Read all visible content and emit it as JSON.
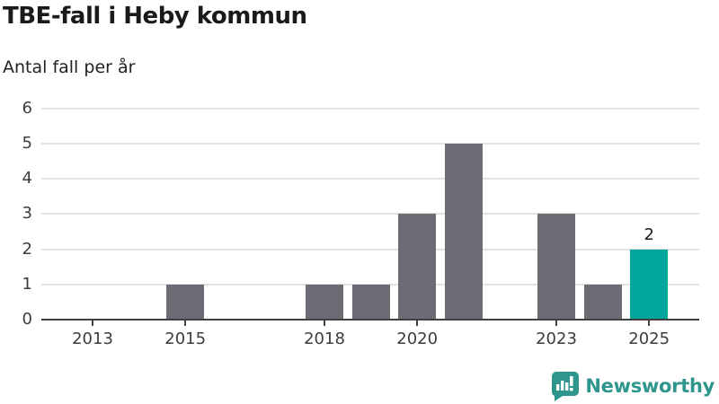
{
  "chart_data": {
    "type": "bar",
    "title": "TBE-fall i Heby kommun",
    "subtitle": "Antal fall per år",
    "x": [
      2013,
      2014,
      2015,
      2016,
      2017,
      2018,
      2019,
      2020,
      2021,
      2022,
      2023,
      2024,
      2025
    ],
    "values": [
      0,
      0,
      1,
      0,
      0,
      1,
      1,
      3,
      5,
      0,
      3,
      1,
      2
    ],
    "x_tick_labels": [
      "2013",
      "2015",
      "2018",
      "2020",
      "2023",
      "2025"
    ],
    "x_tick_years": [
      2013,
      2015,
      2018,
      2020,
      2023,
      2025
    ],
    "y_ticks": [
      0,
      1,
      2,
      3,
      4,
      5,
      6
    ],
    "ylim": [
      0,
      6
    ],
    "grid": true,
    "legend": "none",
    "highlight": {
      "year": 2025,
      "value": 2,
      "label": "2"
    },
    "colors": {
      "bar": "#6c6c75",
      "highlight": "#00a69c",
      "gridline": "#e2e2e2",
      "axis": "#404040",
      "text": "#3c3c3c"
    }
  },
  "branding": {
    "logo_text": "Newsworthy",
    "logo_color": "#2f968d",
    "logo_icon": "bar-chart-speech-bubble"
  }
}
